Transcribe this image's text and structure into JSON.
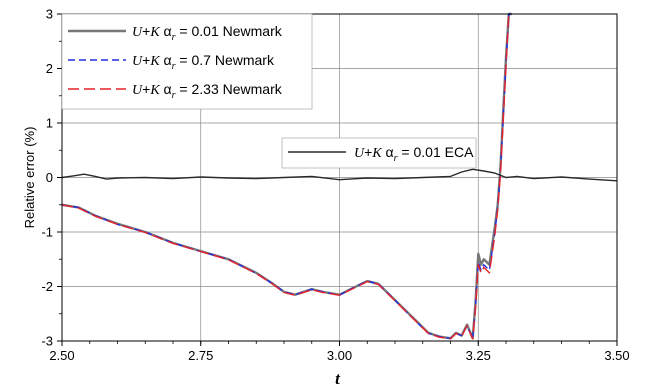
{
  "chart_data": {
    "type": "line",
    "xlabel": "t",
    "ylabel": "Relative error (%)",
    "xlim": [
      2.5,
      3.5
    ],
    "ylim": [
      -3,
      3
    ],
    "x_ticks": [
      "2.50",
      "2.75",
      "3.00",
      "3.25",
      "3.50"
    ],
    "y_ticks": [
      "-3",
      "-2",
      "-1",
      "0",
      "1",
      "2",
      "3"
    ],
    "grid": true,
    "legend_position": "top-left",
    "series": [
      {
        "name": "U+K α_r = 0.01 Newmark",
        "label_parts": {
          "a": "U",
          "b": "+",
          "c": "K",
          "d": " α",
          "e": "r",
          "f": " = 0.01 Newmark"
        },
        "color": "#777777",
        "dash": "solid",
        "x": [
          2.5,
          2.53,
          2.56,
          2.6,
          2.65,
          2.7,
          2.75,
          2.8,
          2.85,
          2.88,
          2.9,
          2.92,
          2.95,
          2.97,
          3.0,
          3.02,
          3.05,
          3.07,
          3.1,
          3.12,
          3.14,
          3.16,
          3.18,
          3.2,
          3.21,
          3.22,
          3.23,
          3.24,
          3.245,
          3.25,
          3.255,
          3.26,
          3.27,
          3.28,
          3.285,
          3.29,
          3.295,
          3.3,
          3.305,
          3.31
        ],
        "y": [
          -0.5,
          -0.55,
          -0.7,
          -0.85,
          -1.0,
          -1.2,
          -1.35,
          -1.5,
          -1.75,
          -1.95,
          -2.1,
          -2.15,
          -2.05,
          -2.1,
          -2.15,
          -2.05,
          -1.9,
          -1.95,
          -2.25,
          -2.45,
          -2.65,
          -2.85,
          -2.92,
          -2.95,
          -2.85,
          -2.9,
          -2.7,
          -2.95,
          -2.3,
          -1.4,
          -1.6,
          -1.5,
          -1.6,
          -0.9,
          -0.5,
          0.2,
          1.2,
          2.2,
          3.0,
          3.0
        ]
      },
      {
        "name": "U+K α_r = 0.7 Newmark",
        "label_parts": {
          "a": "U",
          "b": "+",
          "c": "K",
          "d": " α",
          "e": "r",
          "f": " = 0.7 Newmark"
        },
        "color": "#1f2fe0",
        "dash": "dashed",
        "x": [
          2.5,
          2.53,
          2.56,
          2.6,
          2.65,
          2.7,
          2.75,
          2.8,
          2.85,
          2.88,
          2.9,
          2.92,
          2.95,
          2.97,
          3.0,
          3.02,
          3.05,
          3.07,
          3.1,
          3.12,
          3.14,
          3.16,
          3.18,
          3.2,
          3.21,
          3.22,
          3.23,
          3.24,
          3.245,
          3.25,
          3.255,
          3.26,
          3.27,
          3.28,
          3.285,
          3.29,
          3.295,
          3.3,
          3.305,
          3.31
        ],
        "y": [
          -0.5,
          -0.55,
          -0.7,
          -0.86,
          -1.0,
          -1.2,
          -1.36,
          -1.5,
          -1.76,
          -1.95,
          -2.1,
          -2.15,
          -2.05,
          -2.1,
          -2.16,
          -2.05,
          -1.9,
          -1.95,
          -2.25,
          -2.46,
          -2.66,
          -2.86,
          -2.92,
          -2.95,
          -2.86,
          -2.9,
          -2.72,
          -2.95,
          -2.35,
          -1.55,
          -1.7,
          -1.6,
          -1.7,
          -1.0,
          -0.55,
          0.15,
          1.1,
          2.1,
          3.0,
          3.0
        ]
      },
      {
        "name": "U+K α_r = 2.33 Newmark",
        "label_parts": {
          "a": "U",
          "b": "+",
          "c": "K",
          "d": " α",
          "e": "r",
          "f": " = 2.33 Newmark"
        },
        "color": "#e8222b",
        "dash": "longdash",
        "x": [
          2.5,
          2.53,
          2.56,
          2.6,
          2.65,
          2.7,
          2.75,
          2.8,
          2.85,
          2.88,
          2.9,
          2.92,
          2.95,
          2.97,
          3.0,
          3.02,
          3.05,
          3.07,
          3.1,
          3.12,
          3.14,
          3.16,
          3.18,
          3.2,
          3.21,
          3.22,
          3.23,
          3.24,
          3.245,
          3.25,
          3.255,
          3.26,
          3.27,
          3.28,
          3.285,
          3.29,
          3.295,
          3.3,
          3.305,
          3.31
        ],
        "y": [
          -0.5,
          -0.56,
          -0.71,
          -0.86,
          -1.01,
          -1.21,
          -1.36,
          -1.51,
          -1.76,
          -1.96,
          -2.11,
          -2.16,
          -2.06,
          -2.11,
          -2.16,
          -2.06,
          -1.91,
          -1.96,
          -2.26,
          -2.46,
          -2.66,
          -2.86,
          -2.93,
          -2.96,
          -2.86,
          -2.91,
          -2.72,
          -2.96,
          -2.4,
          -1.6,
          -1.75,
          -1.65,
          -1.75,
          -1.05,
          -0.6,
          0.1,
          1.05,
          2.05,
          3.0,
          3.0
        ]
      },
      {
        "name": "U+K α_r = 0.01 ECA",
        "label_parts": {
          "a": "U",
          "b": "+",
          "c": "K",
          "d": " α",
          "e": "r",
          "f": " = 0.01 ECA"
        },
        "color": "#2a2a2a",
        "dash": "solid",
        "x": [
          2.5,
          2.52,
          2.54,
          2.56,
          2.58,
          2.6,
          2.65,
          2.7,
          2.75,
          2.8,
          2.85,
          2.9,
          2.95,
          3.0,
          3.05,
          3.1,
          3.15,
          3.2,
          3.22,
          3.24,
          3.26,
          3.28,
          3.3,
          3.32,
          3.35,
          3.4,
          3.45,
          3.5
        ],
        "y": [
          0.0,
          0.03,
          0.06,
          0.02,
          -0.03,
          -0.01,
          0.0,
          -0.02,
          0.01,
          -0.01,
          -0.02,
          0.0,
          0.02,
          -0.04,
          -0.01,
          -0.02,
          0.0,
          0.02,
          0.1,
          0.15,
          0.12,
          0.08,
          0.0,
          0.02,
          -0.02,
          0.01,
          -0.03,
          -0.06
        ]
      }
    ]
  }
}
